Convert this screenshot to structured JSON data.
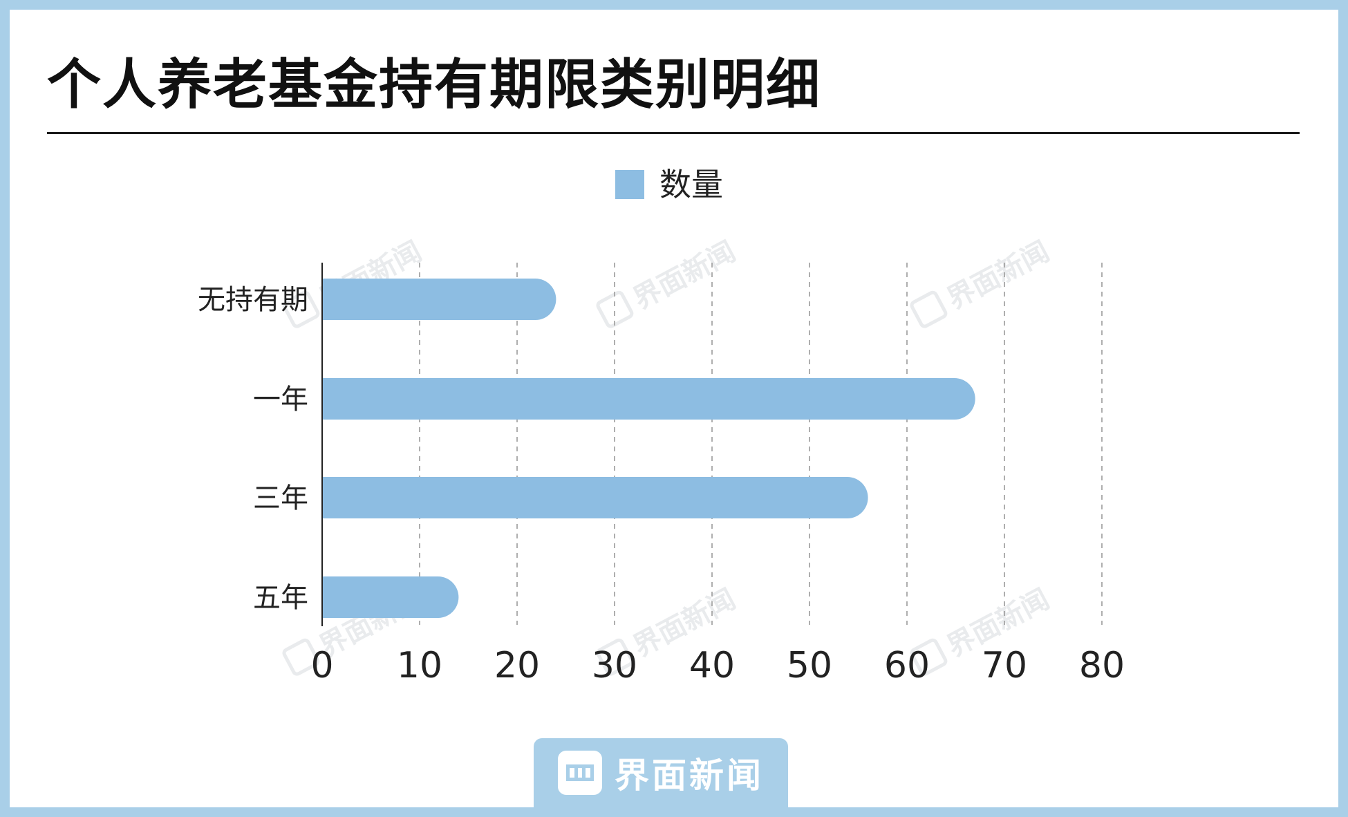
{
  "title": "个人养老基金持有期限类别明细",
  "legend": {
    "label": "数量",
    "color": "#8dbde2"
  },
  "watermark": {
    "text": "界面新闻"
  },
  "logo": {
    "text": "界面新闻",
    "icon": "jiemian-logo-icon"
  },
  "colors": {
    "frame": "#a9cfe8",
    "bar": "#8dbde2",
    "grid": "#9a9a9a",
    "axis": "#222222"
  },
  "chart_data": {
    "type": "bar",
    "orientation": "horizontal",
    "categories": [
      "无持有期",
      "一年",
      "三年",
      "五年"
    ],
    "series": [
      {
        "name": "数量",
        "values": [
          24,
          67,
          56,
          14
        ]
      }
    ],
    "xlim": [
      0,
      80
    ],
    "xticks": [
      "0",
      "10",
      "20",
      "30",
      "40",
      "50",
      "60",
      "70",
      "80"
    ],
    "grid": "vertical-dashed",
    "legend_position": "top-center"
  }
}
